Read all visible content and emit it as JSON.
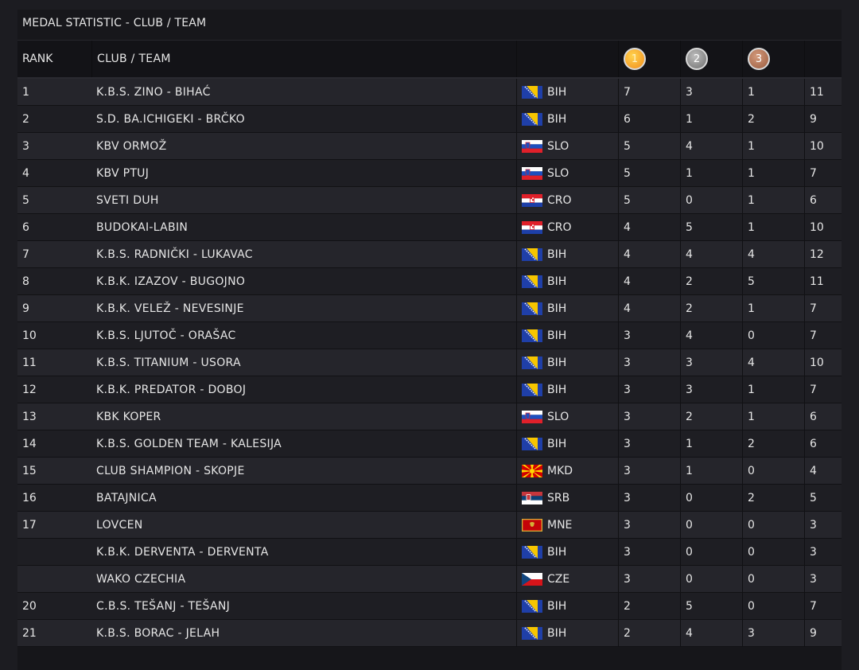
{
  "table": {
    "title": "MEDAL STATISTIC - CLUB / TEAM",
    "headers": {
      "rank": "RANK",
      "club": "CLUB / TEAM",
      "gold": "1",
      "silver": "2",
      "bronze": "3"
    },
    "rows": [
      {
        "rank": "1",
        "club": "K.B.S. ZINO - BIHAĆ",
        "country": "BIH",
        "flag": "bih-flag-icon",
        "gold": "7",
        "silver": "3",
        "bronze": "1",
        "total": "11"
      },
      {
        "rank": "2",
        "club": "S.D. BA.ICHIGEKI - BRČKO",
        "country": "BIH",
        "flag": "bih-flag-icon",
        "gold": "6",
        "silver": "1",
        "bronze": "2",
        "total": "9"
      },
      {
        "rank": "3",
        "club": "KBV ORMOŽ",
        "country": "SLO",
        "flag": "slo-flag-icon",
        "gold": "5",
        "silver": "4",
        "bronze": "1",
        "total": "10"
      },
      {
        "rank": "4",
        "club": "KBV PTUJ",
        "country": "SLO",
        "flag": "slo-flag-icon",
        "gold": "5",
        "silver": "1",
        "bronze": "1",
        "total": "7"
      },
      {
        "rank": "5",
        "club": "SVETI DUH",
        "country": "CRO",
        "flag": "cro-flag-icon",
        "gold": "5",
        "silver": "0",
        "bronze": "1",
        "total": "6"
      },
      {
        "rank": "6",
        "club": "BUDOKAI-LABIN",
        "country": "CRO",
        "flag": "cro-flag-icon",
        "gold": "4",
        "silver": "5",
        "bronze": "1",
        "total": "10"
      },
      {
        "rank": "7",
        "club": "K.B.S. RADNIČKI - LUKAVAC",
        "country": "BIH",
        "flag": "bih-flag-icon",
        "gold": "4",
        "silver": "4",
        "bronze": "4",
        "total": "12"
      },
      {
        "rank": "8",
        "club": "K.B.K. IZAZOV - BUGOJNO",
        "country": "BIH",
        "flag": "bih-flag-icon",
        "gold": "4",
        "silver": "2",
        "bronze": "5",
        "total": "11"
      },
      {
        "rank": "9",
        "club": "K.B.K. VELEŽ - NEVESINJE",
        "country": "BIH",
        "flag": "bih-flag-icon",
        "gold": "4",
        "silver": "2",
        "bronze": "1",
        "total": "7"
      },
      {
        "rank": "10",
        "club": "K.B.S. LJUTOČ - ORAŠAC",
        "country": "BIH",
        "flag": "bih-flag-icon",
        "gold": "3",
        "silver": "4",
        "bronze": "0",
        "total": "7"
      },
      {
        "rank": "11",
        "club": "K.B.S. TITANIUM - USORA",
        "country": "BIH",
        "flag": "bih-flag-icon",
        "gold": "3",
        "silver": "3",
        "bronze": "4",
        "total": "10"
      },
      {
        "rank": "12",
        "club": "K.B.K. PREDATOR - DOBOJ",
        "country": "BIH",
        "flag": "bih-flag-icon",
        "gold": "3",
        "silver": "3",
        "bronze": "1",
        "total": "7"
      },
      {
        "rank": "13",
        "club": "KBK KOPER",
        "country": "SLO",
        "flag": "slo-flag-icon",
        "gold": "3",
        "silver": "2",
        "bronze": "1",
        "total": "6"
      },
      {
        "rank": "14",
        "club": "K.B.S. GOLDEN TEAM - KALESIJA",
        "country": "BIH",
        "flag": "bih-flag-icon",
        "gold": "3",
        "silver": "1",
        "bronze": "2",
        "total": "6"
      },
      {
        "rank": "15",
        "club": "CLUB SHAMPION - SKOPJE",
        "country": "MKD",
        "flag": "mkd-flag-icon",
        "gold": "3",
        "silver": "1",
        "bronze": "0",
        "total": "4"
      },
      {
        "rank": "16",
        "club": "BATAJNICA",
        "country": "SRB",
        "flag": "srb-flag-icon",
        "gold": "3",
        "silver": "0",
        "bronze": "2",
        "total": "5"
      },
      {
        "rank": "17",
        "club": "LOVCEN",
        "country": "MNE",
        "flag": "mne-flag-icon",
        "gold": "3",
        "silver": "0",
        "bronze": "0",
        "total": "3"
      },
      {
        "rank": "",
        "club": "K.B.K. DERVENTA - DERVENTA",
        "country": "BIH",
        "flag": "bih-flag-icon",
        "gold": "3",
        "silver": "0",
        "bronze": "0",
        "total": "3"
      },
      {
        "rank": "",
        "club": "WAKO CZECHIA",
        "country": "CZE",
        "flag": "cze-flag-icon",
        "gold": "3",
        "silver": "0",
        "bronze": "0",
        "total": "3"
      },
      {
        "rank": "20",
        "club": "C.B.S. TEŠANJ - TEŠANJ",
        "country": "BIH",
        "flag": "bih-flag-icon",
        "gold": "2",
        "silver": "5",
        "bronze": "0",
        "total": "7"
      },
      {
        "rank": "21",
        "club": "K.B.S. BORAC - JELAH",
        "country": "BIH",
        "flag": "bih-flag-icon",
        "gold": "2",
        "silver": "4",
        "bronze": "3",
        "total": "9"
      }
    ]
  }
}
